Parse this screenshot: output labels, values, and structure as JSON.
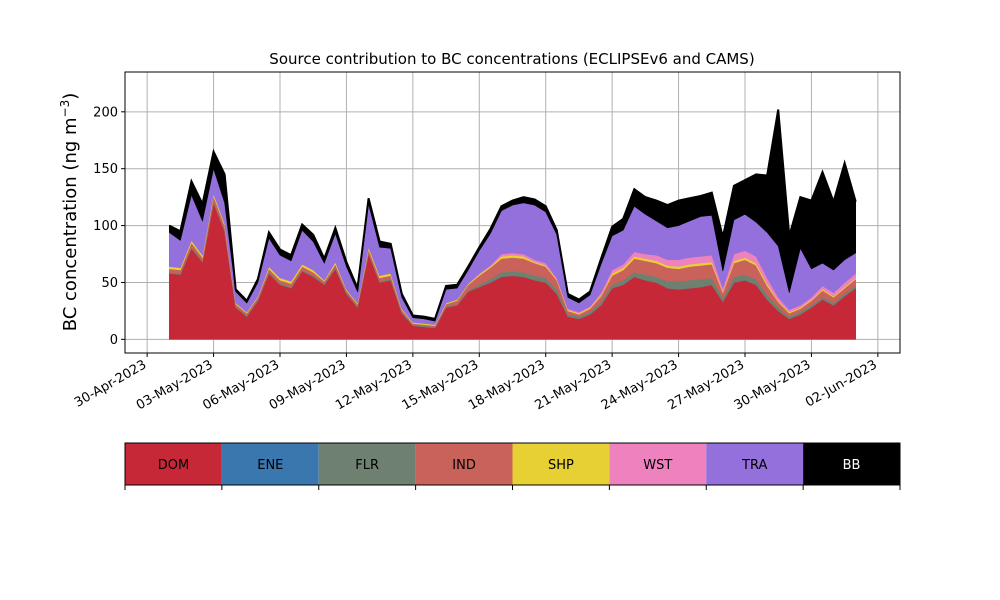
{
  "chart_data": {
    "type": "area",
    "title": "Source contribution to BC concentrations (ECLIPSEv6 and CAMS)",
    "ylabel": "BC concentration (ng m",
    "ylabel_sup": "−3",
    "ylabel_close": ")",
    "xlabel": "",
    "ylim": [
      -12,
      235
    ],
    "xlim": [
      "2023-04-29T00:00",
      "2023-06-03T00:00"
    ],
    "grid": true,
    "yticks": [
      0,
      50,
      100,
      150,
      200
    ],
    "xticks": [
      "2023-04-30",
      "2023-05-03",
      "2023-05-06",
      "2023-05-09",
      "2023-05-12",
      "2023-05-15",
      "2023-05-18",
      "2023-05-21",
      "2023-05-24",
      "2023-05-27",
      "2023-05-30",
      "2023-06-02"
    ],
    "xtick_labels": [
      "30-Apr-2023",
      "03-May-2023",
      "06-May-2023",
      "09-May-2023",
      "12-May-2023",
      "15-May-2023",
      "18-May-2023",
      "21-May-2023",
      "24-May-2023",
      "27-May-2023",
      "30-May-2023",
      "02-Jun-2023"
    ],
    "x": [
      "2023-05-01",
      "2023-05-01T12:00",
      "2023-05-02",
      "2023-05-02T12:00",
      "2023-05-03",
      "2023-05-03T12:00",
      "2023-05-04",
      "2023-05-04T12:00",
      "2023-05-05",
      "2023-05-05T12:00",
      "2023-05-06",
      "2023-05-06T12:00",
      "2023-05-07",
      "2023-05-07T12:00",
      "2023-05-08",
      "2023-05-08T12:00",
      "2023-05-09",
      "2023-05-09T12:00",
      "2023-05-10",
      "2023-05-10T12:00",
      "2023-05-11",
      "2023-05-11T12:00",
      "2023-05-12",
      "2023-05-12T12:00",
      "2023-05-13",
      "2023-05-13T12:00",
      "2023-05-14",
      "2023-05-14T12:00",
      "2023-05-15",
      "2023-05-15T12:00",
      "2023-05-16",
      "2023-05-16T12:00",
      "2023-05-17",
      "2023-05-17T12:00",
      "2023-05-18",
      "2023-05-18T12:00",
      "2023-05-19",
      "2023-05-19T12:00",
      "2023-05-20",
      "2023-05-20T12:00",
      "2023-05-21",
      "2023-05-21T12:00",
      "2023-05-22",
      "2023-05-22T12:00",
      "2023-05-23",
      "2023-05-23T12:00",
      "2023-05-24",
      "2023-05-24T12:00",
      "2023-05-25",
      "2023-05-25T12:00",
      "2023-05-26",
      "2023-05-26T12:00",
      "2023-05-27",
      "2023-05-27T12:00",
      "2023-05-28",
      "2023-05-28T12:00",
      "2023-05-29",
      "2023-05-29T12:00",
      "2023-05-30",
      "2023-05-30T12:00",
      "2023-05-31",
      "2023-05-31T12:00",
      "2023-06-01"
    ],
    "series": [
      {
        "name": "DOM",
        "color": "#c62837",
        "values": [
          58,
          57,
          80,
          68,
          120,
          95,
          28,
          20,
          34,
          58,
          48,
          45,
          60,
          55,
          48,
          62,
          40,
          28,
          75,
          50,
          52,
          23,
          12,
          11,
          10,
          28,
          30,
          42,
          46,
          50,
          55,
          56,
          55,
          52,
          50,
          40,
          20,
          18,
          22,
          30,
          45,
          48,
          55,
          52,
          50,
          45,
          44,
          45,
          46,
          48,
          33,
          50,
          52,
          48,
          35,
          25,
          18,
          22,
          28,
          35,
          30,
          38,
          45
        ]
      },
      {
        "name": "ENE",
        "color": "#3a77ae",
        "values": [
          0,
          0,
          0,
          0,
          0,
          0,
          0,
          0,
          0,
          0,
          0,
          0,
          0,
          0,
          0,
          0,
          0,
          0,
          0,
          0,
          0,
          0,
          0,
          0,
          0,
          0,
          0,
          0,
          0,
          0,
          0,
          0,
          0,
          0,
          0,
          0,
          0,
          0,
          0,
          0,
          0,
          0,
          0,
          0,
          0,
          0,
          0,
          0,
          0,
          0,
          0,
          0,
          0,
          0,
          0,
          0,
          0,
          0,
          0,
          0,
          0,
          0,
          0
        ]
      },
      {
        "name": "FLR",
        "color": "#6e8070",
        "values": [
          1,
          1,
          1,
          1,
          1,
          1,
          1,
          1,
          1,
          1,
          1,
          1,
          1,
          1,
          1,
          1,
          1,
          1,
          1,
          1,
          1,
          1,
          1,
          1,
          1,
          1,
          1,
          1,
          2,
          3,
          4,
          4,
          4,
          4,
          4,
          4,
          2,
          2,
          2,
          3,
          3,
          4,
          4,
          5,
          5,
          6,
          7,
          7,
          7,
          6,
          3,
          5,
          5,
          5,
          4,
          3,
          2,
          2,
          2,
          2,
          2,
          2,
          2
        ]
      },
      {
        "name": "IND",
        "color": "#c9625a",
        "values": [
          3,
          3,
          4,
          3,
          5,
          4,
          2,
          2,
          2,
          3,
          3,
          3,
          3,
          3,
          2,
          3,
          2,
          2,
          3,
          3,
          3,
          2,
          1,
          1,
          1,
          2,
          3,
          5,
          8,
          10,
          12,
          12,
          12,
          11,
          10,
          8,
          3,
          2,
          3,
          5,
          8,
          9,
          12,
          12,
          12,
          12,
          11,
          12,
          12,
          12,
          5,
          12,
          13,
          12,
          8,
          5,
          3,
          3,
          4,
          6,
          5,
          5,
          6
        ]
      },
      {
        "name": "SHP",
        "color": "#e7d033",
        "values": [
          2,
          2,
          2,
          2,
          2,
          2,
          1,
          1,
          1,
          2,
          2,
          2,
          2,
          2,
          1,
          2,
          1,
          1,
          2,
          2,
          2,
          1,
          1,
          1,
          1,
          1,
          1,
          1,
          1,
          1,
          2,
          2,
          2,
          1,
          1,
          1,
          1,
          1,
          1,
          1,
          2,
          2,
          2,
          2,
          2,
          2,
          2,
          2,
          2,
          2,
          1,
          2,
          2,
          2,
          2,
          1,
          1,
          1,
          1,
          1,
          1,
          1,
          1
        ]
      },
      {
        "name": "WST",
        "color": "#ee82bf",
        "values": [
          0,
          0,
          0,
          0,
          0,
          0,
          0,
          0,
          0,
          0,
          0,
          0,
          0,
          0,
          0,
          0,
          0,
          0,
          0,
          0,
          0,
          0,
          0,
          0,
          0,
          0,
          0,
          0,
          1,
          1,
          2,
          2,
          2,
          2,
          2,
          1,
          1,
          1,
          1,
          2,
          3,
          3,
          4,
          4,
          5,
          5,
          6,
          6,
          6,
          6,
          3,
          6,
          6,
          6,
          5,
          3,
          2,
          2,
          2,
          3,
          3,
          4,
          4
        ]
      },
      {
        "name": "TRA",
        "color": "#9370db",
        "values": [
          30,
          24,
          40,
          30,
          22,
          18,
          10,
          8,
          12,
          25,
          20,
          18,
          30,
          25,
          15,
          25,
          20,
          10,
          38,
          25,
          22,
          10,
          4,
          4,
          3,
          12,
          10,
          12,
          20,
          28,
          38,
          42,
          45,
          48,
          45,
          38,
          10,
          8,
          10,
          25,
          30,
          30,
          40,
          35,
          30,
          28,
          30,
          32,
          35,
          35,
          15,
          30,
          32,
          30,
          40,
          45,
          15,
          50,
          25,
          20,
          20,
          20,
          18
        ]
      },
      {
        "name": "BB",
        "color": "#000000",
        "values": [
          6,
          8,
          12,
          15,
          15,
          25,
          2,
          2,
          3,
          5,
          5,
          5,
          5,
          6,
          4,
          5,
          4,
          3,
          5,
          5,
          4,
          3,
          2,
          2,
          2,
          3,
          3,
          3,
          3,
          4,
          4,
          4,
          5,
          5,
          5,
          4,
          3,
          3,
          3,
          5,
          8,
          10,
          15,
          15,
          18,
          20,
          22,
          20,
          18,
          20,
          30,
          30,
          30,
          42,
          50,
          120,
          50,
          45,
          60,
          80,
          60,
          85,
          45
        ]
      }
    ],
    "legend_position": "below"
  }
}
